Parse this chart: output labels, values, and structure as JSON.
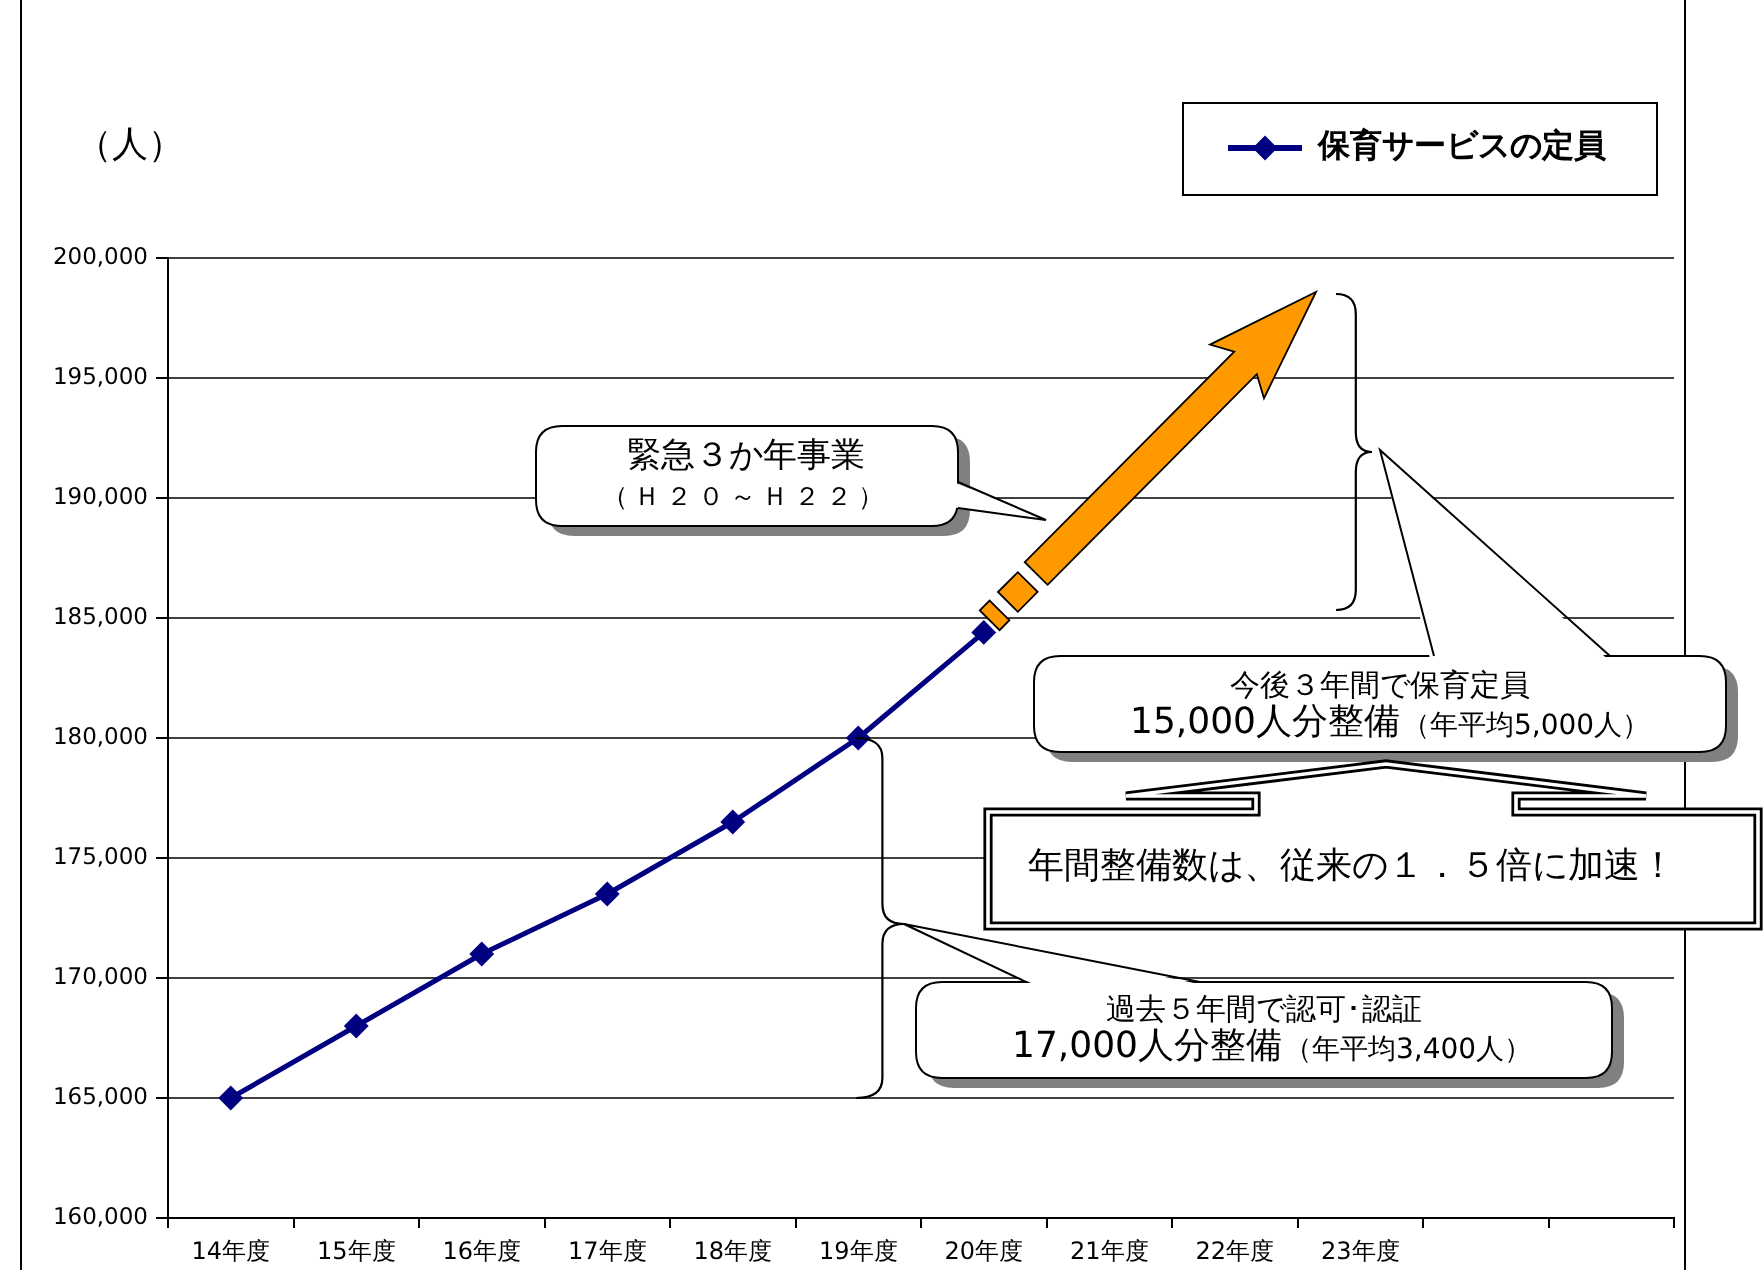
{
  "chart_data": {
    "type": "line",
    "ylabel": "（人）",
    "categories": [
      "14年度",
      "15年度",
      "16年度",
      "17年度",
      "18年度",
      "19年度",
      "20年度",
      "21年度",
      "22年度",
      "23年度",
      null,
      null
    ],
    "series": [
      {
        "name": "保育サービスの定員",
        "color": "#000080",
        "values": [
          165000,
          168000,
          171000,
          173500,
          176500,
          180000,
          184400,
          null,
          null,
          null,
          null,
          null
        ]
      }
    ],
    "ylim": [
      160000,
      200000
    ],
    "yticks": [
      {
        "value": 160000,
        "label": "160,000"
      },
      {
        "value": 165000,
        "label": "165,000"
      },
      {
        "value": 170000,
        "label": "170,000"
      },
      {
        "value": 175000,
        "label": "175,000"
      },
      {
        "value": 180000,
        "label": "180,000"
      },
      {
        "value": 185000,
        "label": "185,000"
      },
      {
        "value": 190000,
        "label": "190,000"
      },
      {
        "value": 195000,
        "label": "195,000"
      },
      {
        "value": 200000,
        "label": "200,000"
      }
    ],
    "grid": "y",
    "legend": "top right",
    "marker": "diamond",
    "line_style": "solid",
    "annotations": [
      "緊急３か年事業",
      "（Ｈ２０～Ｈ２２）",
      "今後３年間で保育定員",
      "15,000人分整備",
      "（年平均5,000人）",
      "年間整備数は、従来の１．５倍に加速！",
      "過去５年間で認可･認証",
      "17,000人分整備",
      "（年平均3,400人）"
    ]
  }
}
